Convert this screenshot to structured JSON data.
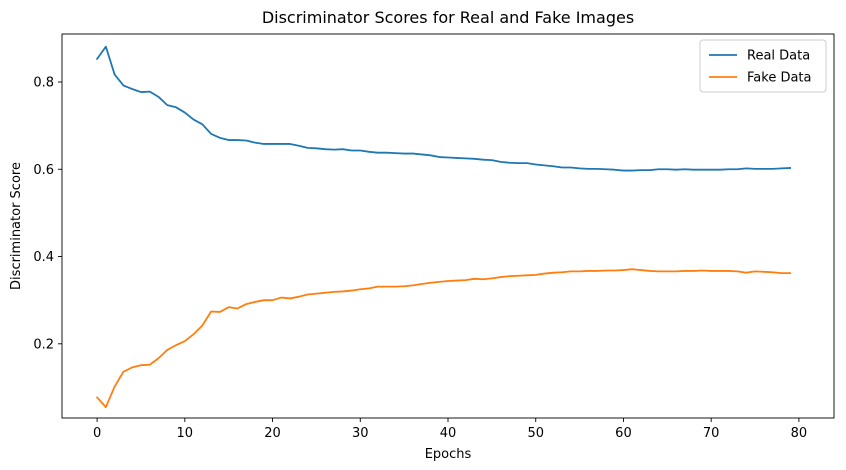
{
  "chart_data": {
    "type": "line",
    "title": "Discriminator Scores for Real and Fake Images",
    "xlabel": "Epochs",
    "ylabel": "Discriminator Score",
    "xlim": [
      -4,
      84
    ],
    "ylim": [
      0.03,
      0.91
    ],
    "xticks": [
      0,
      10,
      20,
      30,
      40,
      50,
      60,
      70,
      80
    ],
    "yticks": [
      0.2,
      0.4,
      0.6,
      0.8
    ],
    "ytick_labels": [
      "0.2",
      "0.4",
      "0.6",
      "0.8"
    ],
    "grid": false,
    "legend_position": "top-right",
    "x": [
      0,
      1,
      2,
      3,
      4,
      5,
      6,
      7,
      8,
      9,
      10,
      11,
      12,
      13,
      14,
      15,
      16,
      17,
      18,
      19,
      20,
      21,
      22,
      23,
      24,
      25,
      26,
      27,
      28,
      29,
      30,
      31,
      32,
      33,
      34,
      35,
      36,
      37,
      38,
      39,
      40,
      41,
      42,
      43,
      44,
      45,
      46,
      47,
      48,
      49,
      50,
      51,
      52,
      53,
      54,
      55,
      56,
      57,
      58,
      59,
      60,
      61,
      62,
      63,
      64,
      65,
      66,
      67,
      68,
      69,
      70,
      71,
      72,
      73,
      74,
      75,
      76,
      77,
      78,
      79
    ],
    "series": [
      {
        "name": "Real Data",
        "color": "#1f77b4",
        "values": [
          0.853,
          0.881,
          0.817,
          0.792,
          0.784,
          0.777,
          0.778,
          0.766,
          0.747,
          0.742,
          0.73,
          0.714,
          0.703,
          0.681,
          0.672,
          0.667,
          0.667,
          0.666,
          0.661,
          0.658,
          0.658,
          0.658,
          0.658,
          0.654,
          0.649,
          0.648,
          0.646,
          0.645,
          0.646,
          0.643,
          0.643,
          0.64,
          0.638,
          0.638,
          0.637,
          0.636,
          0.636,
          0.634,
          0.632,
          0.628,
          0.627,
          0.626,
          0.625,
          0.624,
          0.622,
          0.621,
          0.617,
          0.615,
          0.614,
          0.614,
          0.611,
          0.609,
          0.607,
          0.604,
          0.604,
          0.602,
          0.601,
          0.601,
          0.6,
          0.599,
          0.597,
          0.597,
          0.598,
          0.598,
          0.6,
          0.6,
          0.599,
          0.6,
          0.599,
          0.599,
          0.599,
          0.599,
          0.6,
          0.6,
          0.602,
          0.601,
          0.601,
          0.601,
          0.602,
          0.603
        ]
      },
      {
        "name": "Fake Data",
        "color": "#ff7f0e",
        "values": [
          0.077,
          0.055,
          0.102,
          0.136,
          0.146,
          0.151,
          0.152,
          0.167,
          0.186,
          0.197,
          0.206,
          0.222,
          0.242,
          0.274,
          0.273,
          0.284,
          0.281,
          0.291,
          0.296,
          0.3,
          0.3,
          0.306,
          0.304,
          0.308,
          0.313,
          0.315,
          0.317,
          0.319,
          0.32,
          0.322,
          0.325,
          0.327,
          0.331,
          0.331,
          0.331,
          0.332,
          0.334,
          0.337,
          0.34,
          0.342,
          0.344,
          0.345,
          0.346,
          0.349,
          0.348,
          0.35,
          0.353,
          0.355,
          0.356,
          0.357,
          0.358,
          0.361,
          0.363,
          0.364,
          0.366,
          0.366,
          0.367,
          0.367,
          0.368,
          0.368,
          0.369,
          0.371,
          0.369,
          0.367,
          0.366,
          0.366,
          0.366,
          0.367,
          0.367,
          0.368,
          0.367,
          0.367,
          0.367,
          0.366,
          0.363,
          0.366,
          0.365,
          0.364,
          0.362,
          0.362
        ]
      }
    ]
  }
}
